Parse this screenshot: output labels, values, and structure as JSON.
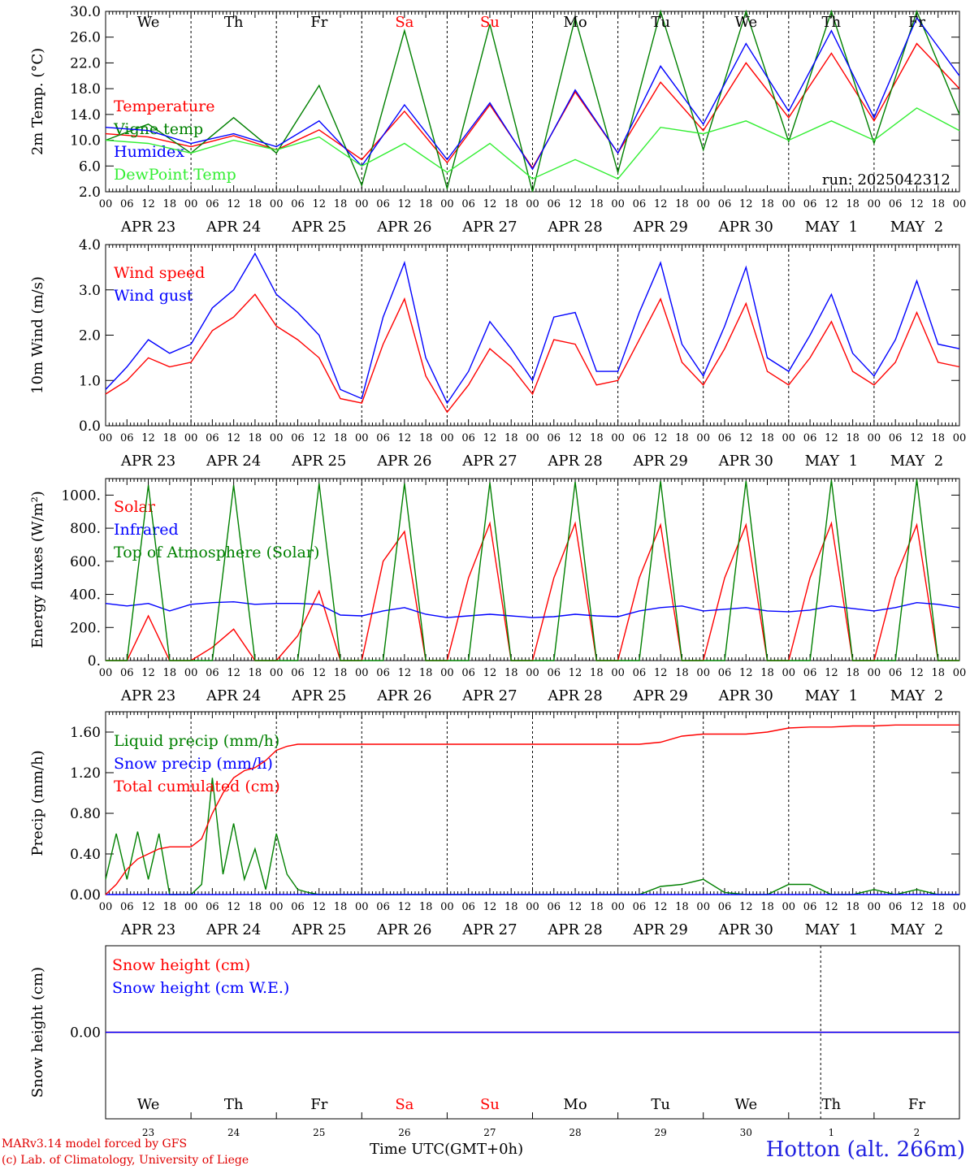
{
  "days": [
    "We",
    "Th",
    "Fr",
    "Sa",
    "Su",
    "Mo",
    "Tu",
    "We",
    "Th",
    "Fr"
  ],
  "weekend_days": [
    "Sa",
    "Su"
  ],
  "dates": [
    "APR 23",
    "APR 24",
    "APR 25",
    "APR 26",
    "APR 27",
    "APR 28",
    "APR 29",
    "APR 30",
    "MAY  1",
    "MAY  2"
  ],
  "day_numbers": [
    "23",
    "24",
    "25",
    "26",
    "27",
    "28",
    "29",
    "30",
    "1",
    "2"
  ],
  "hour_ticks": [
    "00",
    "06",
    "12",
    "18"
  ],
  "end_tick": "00",
  "run_label": "run: 2025042312",
  "footer": {
    "model": "MARv3.14 model forced by GFS",
    "lab": "(c) Lab. of Climatology, University of Liege",
    "time_axis": "Time UTC(GMT+0h)",
    "station": "Hotton (alt. 266m)"
  },
  "colors": {
    "red": "#ff0000",
    "blue": "#0000ff",
    "green": "#008000",
    "lightgreen": "#33ee33"
  },
  "chart_data": [
    {
      "type": "line",
      "ylabel": "2m Temp. (°C)",
      "ylim": [
        2,
        30
      ],
      "yticks": [
        "2.0",
        "6.0",
        "10.0",
        "14.0",
        "18.0",
        "22.0",
        "26.0",
        "30.0"
      ],
      "x_hours": [
        0,
        12,
        24,
        36,
        48,
        60,
        72,
        84,
        96,
        108,
        120,
        132,
        144,
        156,
        168,
        180,
        192,
        204,
        216,
        228,
        240
      ],
      "series": [
        {
          "name": "Temperature",
          "color": "red",
          "values": [
            11,
            10.5,
            9,
            10.7,
            8.5,
            11.6,
            7,
            14.5,
            6.5,
            15.5,
            5.7,
            17.5,
            8,
            19,
            11.5,
            22,
            13.5,
            23.5,
            13,
            25,
            18
          ]
        },
        {
          "name": "Vigne temp",
          "color": "green",
          "values": [
            10,
            12.5,
            8,
            13.5,
            8,
            18.5,
            3,
            27,
            2.5,
            28,
            2,
            29,
            5,
            30,
            8.5,
            31,
            9.8,
            31,
            9.5,
            31,
            14
          ]
        },
        {
          "name": "Humidex",
          "color": "blue",
          "values": [
            12,
            11.5,
            9.5,
            11,
            9,
            13,
            6,
            15.5,
            7,
            15.8,
            5.5,
            17.8,
            8,
            21.5,
            12.5,
            25,
            14.5,
            27,
            13.5,
            29,
            20
          ]
        },
        {
          "name": "DewPoint Temp",
          "color": "lightgreen",
          "values": [
            10,
            9.5,
            8,
            10,
            8.5,
            10.5,
            6,
            9.5,
            5,
            9.5,
            4,
            7,
            4,
            12,
            11,
            13,
            10,
            13,
            10,
            15,
            11.5
          ]
        }
      ]
    },
    {
      "type": "line",
      "ylabel": "10m Wind (m/s)",
      "ylim": [
        0,
        4
      ],
      "yticks": [
        "0.0",
        "1.0",
        "2.0",
        "3.0",
        "4.0"
      ],
      "x_hours": [
        0,
        6,
        12,
        18,
        24,
        30,
        36,
        42,
        48,
        54,
        60,
        66,
        72,
        78,
        84,
        90,
        96,
        102,
        108,
        114,
        120,
        126,
        132,
        138,
        144,
        150,
        156,
        162,
        168,
        174,
        180,
        186,
        192,
        198,
        204,
        210,
        216,
        222,
        228,
        234,
        240
      ],
      "series": [
        {
          "name": "Wind speed",
          "color": "red",
          "values": [
            0.7,
            1.0,
            1.5,
            1.3,
            1.4,
            2.1,
            2.4,
            2.9,
            2.2,
            1.9,
            1.5,
            0.6,
            0.5,
            1.8,
            2.8,
            1.1,
            0.3,
            0.9,
            1.7,
            1.3,
            0.7,
            1.9,
            1.8,
            0.9,
            1.0,
            1.9,
            2.8,
            1.4,
            0.9,
            1.7,
            2.7,
            1.2,
            0.9,
            1.5,
            2.3,
            1.2,
            0.9,
            1.4,
            2.5,
            1.4,
            1.3
          ]
        },
        {
          "name": "Wind gust",
          "color": "blue",
          "values": [
            0.8,
            1.3,
            1.9,
            1.6,
            1.8,
            2.6,
            3.0,
            3.8,
            2.9,
            2.5,
            2.0,
            0.8,
            0.6,
            2.4,
            3.6,
            1.5,
            0.5,
            1.2,
            2.3,
            1.7,
            1.0,
            2.4,
            2.5,
            1.2,
            1.2,
            2.5,
            3.6,
            1.8,
            1.1,
            2.2,
            3.5,
            1.5,
            1.2,
            2.0,
            2.9,
            1.6,
            1.1,
            1.9,
            3.2,
            1.8,
            1.7
          ]
        }
      ]
    },
    {
      "type": "line",
      "ylabel": "Energy fluxes (W/m²)",
      "ylim": [
        0,
        1100
      ],
      "yticks": [
        "0.",
        "200.",
        "400.",
        "600.",
        "800.",
        "1000."
      ],
      "x_hours": [
        0,
        6,
        12,
        18,
        24,
        30,
        36,
        42,
        48,
        54,
        60,
        66,
        72,
        78,
        84,
        90,
        96,
        102,
        108,
        114,
        120,
        126,
        132,
        138,
        144,
        150,
        156,
        162,
        168,
        174,
        180,
        186,
        192,
        198,
        204,
        210,
        216,
        222,
        228,
        234,
        240
      ],
      "series": [
        {
          "name": "Solar",
          "color": "red",
          "values": [
            0,
            0,
            270,
            0,
            0,
            80,
            190,
            0,
            0,
            150,
            420,
            0,
            0,
            600,
            780,
            0,
            0,
            500,
            830,
            0,
            0,
            500,
            830,
            0,
            0,
            500,
            820,
            0,
            0,
            500,
            820,
            0,
            0,
            500,
            830,
            0,
            0,
            500,
            820,
            0,
            0
          ]
        },
        {
          "name": "Infrared",
          "color": "blue",
          "values": [
            345,
            330,
            345,
            300,
            340,
            350,
            355,
            340,
            345,
            345,
            340,
            275,
            270,
            300,
            320,
            280,
            260,
            270,
            280,
            270,
            260,
            265,
            280,
            270,
            265,
            300,
            320,
            330,
            300,
            310,
            320,
            300,
            295,
            305,
            330,
            315,
            300,
            320,
            350,
            340,
            320
          ]
        },
        {
          "name": "Top of Atmosphere (Solar)",
          "color": "green",
          "values": [
            0,
            0,
            1060,
            0,
            0,
            0,
            1060,
            0,
            0,
            0,
            1070,
            0,
            0,
            0,
            1070,
            0,
            0,
            0,
            1075,
            0,
            0,
            0,
            1080,
            0,
            0,
            0,
            1085,
            0,
            0,
            0,
            1085,
            0,
            0,
            0,
            1090,
            0,
            0,
            0,
            1095,
            0,
            0
          ]
        }
      ]
    },
    {
      "type": "line",
      "ylabel": "Precip (mm/h)",
      "ylim": [
        0,
        1.8
      ],
      "yticks": [
        "0.00",
        "0.40",
        "0.80",
        "1.20",
        "1.60"
      ],
      "x_hours": [
        0,
        3,
        6,
        9,
        12,
        15,
        18,
        21,
        24,
        27,
        30,
        33,
        36,
        39,
        42,
        45,
        48,
        51,
        54,
        57,
        60,
        66,
        72,
        96,
        120,
        144,
        150,
        156,
        162,
        168,
        174,
        180,
        186,
        192,
        198,
        204,
        210,
        216,
        222,
        228,
        234,
        240
      ],
      "series": [
        {
          "name": "Liquid precip (mm/h)",
          "color": "green",
          "values": [
            0.15,
            0.6,
            0.15,
            0.62,
            0.15,
            0.6,
            0,
            0,
            0,
            0.1,
            1.15,
            0.2,
            0.7,
            0.15,
            0.45,
            0.05,
            0.6,
            0.2,
            0.05,
            0.02,
            0,
            0,
            0,
            0,
            0,
            0,
            0,
            0.08,
            0.1,
            0.15,
            0.02,
            0,
            0,
            0.1,
            0.1,
            0,
            0,
            0.05,
            0,
            0.05,
            0,
            0
          ]
        },
        {
          "name": "Snow precip (mm/h)",
          "color": "blue",
          "values": [
            0,
            0,
            0,
            0,
            0,
            0,
            0,
            0,
            0,
            0,
            0,
            0,
            0,
            0,
            0,
            0,
            0,
            0,
            0,
            0,
            0,
            0,
            0,
            0,
            0,
            0,
            0,
            0,
            0,
            0,
            0,
            0,
            0,
            0,
            0,
            0,
            0,
            0,
            0,
            0,
            0,
            0
          ]
        },
        {
          "name": "Total cumulated (cm)",
          "color": "red",
          "values": [
            0,
            0.1,
            0.25,
            0.35,
            0.4,
            0.45,
            0.47,
            0.47,
            0.47,
            0.55,
            0.8,
            1.0,
            1.15,
            1.22,
            1.25,
            1.32,
            1.42,
            1.46,
            1.48,
            1.48,
            1.48,
            1.48,
            1.48,
            1.48,
            1.48,
            1.48,
            1.48,
            1.5,
            1.56,
            1.58,
            1.58,
            1.58,
            1.6,
            1.64,
            1.65,
            1.65,
            1.66,
            1.66,
            1.67,
            1.67,
            1.67,
            1.67
          ]
        }
      ]
    },
    {
      "type": "line",
      "ylabel": "Snow height (cm)",
      "ylim": [
        -1,
        1
      ],
      "yticks": [
        "0.00"
      ],
      "x_hours": [
        0,
        240
      ],
      "series": [
        {
          "name": "Snow height (cm)",
          "color": "red",
          "values": [
            0,
            0
          ]
        },
        {
          "name": "Snow height (cm W.E.)",
          "color": "blue",
          "values": [
            0,
            0
          ]
        }
      ]
    }
  ]
}
